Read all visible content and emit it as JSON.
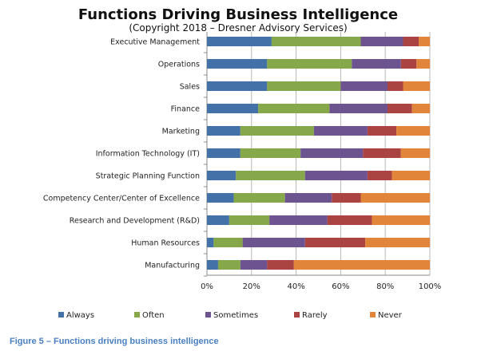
{
  "chart_data": {
    "type": "bar",
    "orientation": "horizontal",
    "stacked": "percent",
    "title": "Functions Driving Business Intelligence",
    "subtitle": "(Copyright 2018 – Dresner Advisory Services)",
    "categories": [
      "Executive Management",
      "Operations",
      "Sales",
      "Finance",
      "Marketing",
      "Information Technology (IT)",
      "Strategic Planning Function",
      "Competency Center/Center of Excellence",
      "Research and Development (R&D)",
      "Human Resources",
      "Manufacturing"
    ],
    "series": [
      {
        "name": "Always",
        "color": "#4472a8",
        "values": [
          29,
          27,
          27,
          23,
          15,
          15,
          13,
          12,
          10,
          3,
          5
        ]
      },
      {
        "name": "Often",
        "color": "#86a84a",
        "values": [
          40,
          38,
          33,
          32,
          33,
          27,
          31,
          23,
          18,
          13,
          10
        ]
      },
      {
        "name": "Sometimes",
        "color": "#6e5391",
        "values": [
          19,
          22,
          21,
          26,
          24,
          28,
          28,
          21,
          26,
          28,
          12
        ]
      },
      {
        "name": "Rarely",
        "color": "#a94442",
        "values": [
          7,
          7,
          7,
          11,
          13,
          17,
          11,
          13,
          20,
          27,
          12
        ]
      },
      {
        "name": "Never",
        "color": "#e0853a",
        "values": [
          5,
          6,
          12,
          8,
          15,
          13,
          17,
          31,
          26,
          29,
          61
        ]
      }
    ],
    "xlim": [
      0,
      100
    ],
    "x_ticks": [
      "0%",
      "20%",
      "40%",
      "60%",
      "80%",
      "100%"
    ],
    "grid": "vertical",
    "legend": "bottom"
  },
  "caption": "Figure 5 – Functions driving business intelligence"
}
